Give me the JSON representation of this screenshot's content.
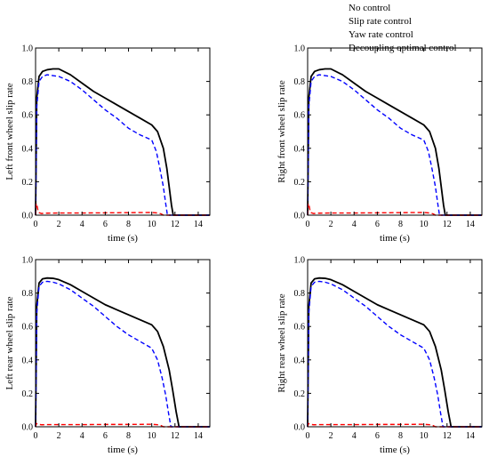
{
  "colors": {
    "no_control": "#000000",
    "slip_rate_control": "#0000ff",
    "yaw_rate_control": "#00aa00",
    "decoupling_optimal_control": "#ff0000"
  },
  "legend": [
    {
      "key": "no_control",
      "label": "No control",
      "style": "solid"
    },
    {
      "key": "slip_rate_control",
      "label": "Slip rate control",
      "style": "dashed"
    },
    {
      "key": "yaw_rate_control",
      "label": "Yaw  rate control",
      "style": "none"
    },
    {
      "key": "decoupling_optimal_control",
      "label": "Decoupling optimal control",
      "style": "dashed"
    }
  ],
  "chart_data": [
    {
      "type": "line",
      "xlabel": "time (s)",
      "ylabel": "Left front wheel slip rate",
      "xlim": [
        0,
        15
      ],
      "ylim": [
        0,
        1.0
      ],
      "xticks": [
        0,
        2,
        4,
        6,
        8,
        10,
        12,
        14
      ],
      "yticks": [
        "0.0",
        "0.2",
        "0.4",
        "0.6",
        "0.8",
        "1.0"
      ],
      "series": [
        {
          "name": "No control",
          "key": "no_control",
          "x": [
            0,
            0.1,
            0.3,
            0.6,
            1,
            1.5,
            2,
            3,
            4,
            5,
            6,
            7,
            8,
            9,
            10,
            10.5,
            11,
            11.3,
            11.5,
            11.7,
            11.85,
            15
          ],
          "y": [
            0,
            0.7,
            0.83,
            0.86,
            0.87,
            0.875,
            0.875,
            0.84,
            0.79,
            0.74,
            0.7,
            0.66,
            0.62,
            0.58,
            0.54,
            0.5,
            0.4,
            0.28,
            0.17,
            0.06,
            0,
            0
          ]
        },
        {
          "name": "Slip rate control",
          "key": "slip_rate_control",
          "x": [
            0,
            0.1,
            0.3,
            0.6,
            1,
            1.5,
            2,
            3,
            4,
            5,
            6,
            7,
            8,
            9,
            10,
            10.4,
            10.7,
            11,
            11.2,
            11.35,
            15
          ],
          "y": [
            0,
            0.65,
            0.8,
            0.83,
            0.84,
            0.835,
            0.83,
            0.8,
            0.75,
            0.69,
            0.63,
            0.58,
            0.52,
            0.48,
            0.45,
            0.38,
            0.28,
            0.17,
            0.07,
            0,
            0
          ]
        },
        {
          "name": "Decoupling optimal control",
          "key": "decoupling_optimal_control",
          "x": [
            0,
            0.05,
            0.12,
            0.2,
            0.3,
            0.5,
            1,
            2,
            4,
            6,
            8,
            10,
            10.5,
            10.8,
            11,
            15
          ],
          "y": [
            0,
            0.07,
            0.06,
            0.03,
            0.015,
            0.01,
            0.012,
            0.013,
            0.013,
            0.014,
            0.015,
            0.016,
            0.013,
            0.008,
            0,
            0
          ]
        }
      ]
    },
    {
      "type": "line",
      "xlabel": "time (s)",
      "ylabel": "Right front wheel slip rate",
      "xlim": [
        0,
        15
      ],
      "ylim": [
        0,
        1.0
      ],
      "xticks": [
        0,
        2,
        4,
        6,
        8,
        10,
        12,
        14
      ],
      "yticks": [
        "0.0",
        "0.2",
        "0.4",
        "0.6",
        "0.8",
        "1.0"
      ],
      "series": [
        {
          "name": "No control",
          "key": "no_control",
          "x": [
            0,
            0.1,
            0.3,
            0.6,
            1,
            1.5,
            2,
            3,
            4,
            5,
            6,
            7,
            8,
            9,
            10,
            10.5,
            11,
            11.3,
            11.5,
            11.7,
            11.85,
            15
          ],
          "y": [
            0,
            0.7,
            0.83,
            0.86,
            0.87,
            0.875,
            0.875,
            0.84,
            0.79,
            0.74,
            0.7,
            0.66,
            0.62,
            0.58,
            0.54,
            0.5,
            0.4,
            0.28,
            0.17,
            0.06,
            0,
            0
          ]
        },
        {
          "name": "Slip rate control",
          "key": "slip_rate_control",
          "x": [
            0,
            0.1,
            0.3,
            0.6,
            1,
            1.5,
            2,
            3,
            4,
            5,
            6,
            7,
            8,
            9,
            10,
            10.4,
            10.7,
            11,
            11.2,
            11.35,
            15
          ],
          "y": [
            0,
            0.65,
            0.8,
            0.83,
            0.84,
            0.835,
            0.83,
            0.8,
            0.75,
            0.69,
            0.63,
            0.58,
            0.52,
            0.48,
            0.45,
            0.38,
            0.28,
            0.17,
            0.07,
            0,
            0
          ]
        },
        {
          "name": "Decoupling optimal control",
          "key": "decoupling_optimal_control",
          "x": [
            0,
            0.05,
            0.12,
            0.2,
            0.3,
            0.5,
            1,
            2,
            4,
            6,
            8,
            10,
            10.5,
            10.8,
            11,
            15
          ],
          "y": [
            0,
            0.07,
            0.06,
            0.03,
            0.015,
            0.01,
            0.012,
            0.013,
            0.013,
            0.014,
            0.015,
            0.016,
            0.013,
            0.008,
            0,
            0
          ]
        }
      ]
    },
    {
      "type": "line",
      "xlabel": "time (s)",
      "ylabel": "Left rear wheel slip rate",
      "xlim": [
        0,
        15
      ],
      "ylim": [
        0,
        1.0
      ],
      "xticks": [
        0,
        2,
        4,
        6,
        8,
        10,
        12,
        14
      ],
      "yticks": [
        "0.0",
        "0.2",
        "0.4",
        "0.6",
        "0.8",
        "1.0"
      ],
      "series": [
        {
          "name": "No control",
          "key": "no_control",
          "x": [
            0,
            0.1,
            0.3,
            0.6,
            1,
            1.5,
            2,
            3,
            4,
            5,
            6,
            7,
            8,
            9,
            10,
            10.5,
            11,
            11.5,
            11.8,
            12.1,
            12.35,
            15
          ],
          "y": [
            0,
            0.72,
            0.86,
            0.885,
            0.89,
            0.888,
            0.88,
            0.85,
            0.81,
            0.77,
            0.73,
            0.7,
            0.67,
            0.64,
            0.61,
            0.57,
            0.48,
            0.34,
            0.22,
            0.09,
            0,
            0
          ]
        },
        {
          "name": "Slip rate control",
          "key": "slip_rate_control",
          "x": [
            0,
            0.1,
            0.3,
            0.6,
            1,
            1.5,
            2,
            3,
            4,
            5,
            6,
            7,
            8,
            9,
            10,
            10.5,
            10.9,
            11.2,
            11.45,
            11.65,
            15
          ],
          "y": [
            0,
            0.68,
            0.84,
            0.865,
            0.87,
            0.865,
            0.855,
            0.82,
            0.77,
            0.72,
            0.66,
            0.6,
            0.55,
            0.51,
            0.47,
            0.4,
            0.29,
            0.19,
            0.08,
            0,
            0
          ]
        },
        {
          "name": "Decoupling optimal control",
          "key": "decoupling_optimal_control",
          "x": [
            0,
            0.08,
            0.2,
            0.5,
            1,
            2,
            4,
            6,
            8,
            10,
            10.5,
            10.8,
            11,
            15
          ],
          "y": [
            0,
            0.02,
            0.015,
            0.012,
            0.013,
            0.013,
            0.013,
            0.014,
            0.014,
            0.015,
            0.012,
            0.007,
            0,
            0
          ]
        }
      ]
    },
    {
      "type": "line",
      "xlabel": "time (s)",
      "ylabel": "Right rear wheel slip rate",
      "xlim": [
        0,
        15
      ],
      "ylim": [
        0,
        1.0
      ],
      "xticks": [
        0,
        2,
        4,
        6,
        8,
        10,
        12,
        14
      ],
      "yticks": [
        "0.0",
        "0.2",
        "0.4",
        "0.6",
        "0.8",
        "1.0"
      ],
      "series": [
        {
          "name": "No control",
          "key": "no_control",
          "x": [
            0,
            0.1,
            0.3,
            0.6,
            1,
            1.5,
            2,
            3,
            4,
            5,
            6,
            7,
            8,
            9,
            10,
            10.5,
            11,
            11.5,
            11.8,
            12.1,
            12.35,
            15
          ],
          "y": [
            0,
            0.72,
            0.86,
            0.885,
            0.89,
            0.888,
            0.88,
            0.85,
            0.81,
            0.77,
            0.73,
            0.7,
            0.67,
            0.64,
            0.61,
            0.57,
            0.48,
            0.34,
            0.22,
            0.09,
            0,
            0
          ]
        },
        {
          "name": "Slip rate control",
          "key": "slip_rate_control",
          "x": [
            0,
            0.1,
            0.3,
            0.6,
            1,
            1.5,
            2,
            3,
            4,
            5,
            6,
            7,
            8,
            9,
            10,
            10.5,
            10.9,
            11.2,
            11.45,
            11.65,
            15
          ],
          "y": [
            0,
            0.68,
            0.84,
            0.865,
            0.87,
            0.865,
            0.855,
            0.82,
            0.77,
            0.72,
            0.66,
            0.6,
            0.55,
            0.51,
            0.47,
            0.4,
            0.29,
            0.19,
            0.08,
            0,
            0
          ]
        },
        {
          "name": "Decoupling optimal control",
          "key": "decoupling_optimal_control",
          "x": [
            0,
            0.08,
            0.2,
            0.5,
            1,
            2,
            4,
            6,
            8,
            10,
            10.5,
            10.8,
            11,
            15
          ],
          "y": [
            0,
            0.02,
            0.015,
            0.012,
            0.013,
            0.013,
            0.013,
            0.014,
            0.014,
            0.015,
            0.012,
            0.007,
            0,
            0
          ]
        }
      ]
    }
  ]
}
